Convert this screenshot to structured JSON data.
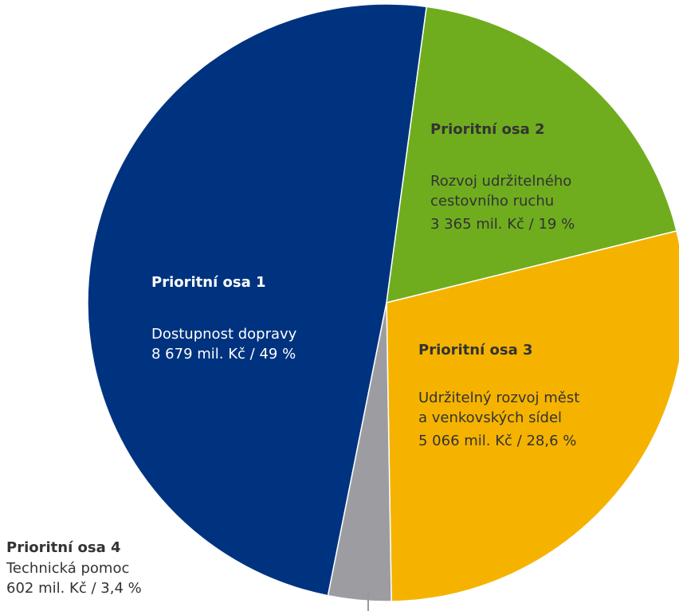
{
  "chart_data": {
    "type": "pie",
    "categories": [
      "Prioritní osa 1",
      "Prioritní osa 2",
      "Prioritní osa 3",
      "Prioritní osa 4"
    ],
    "descriptions": [
      [
        "Dostupnost dopravy"
      ],
      [
        "Rozvoj udržitelného",
        "cestovního ruchu"
      ],
      [
        "Udržitelný rozvoj měst",
        "a venkovských sídel"
      ],
      [
        "Technická pomoc"
      ]
    ],
    "values": [
      49,
      19,
      28.6,
      3.4
    ],
    "value_labels": [
      "8 679 mil. Kč / 49 %",
      "3 365 mil. Kč / 19 %",
      "5 066 mil. Kč / 28,6 %",
      "602 mil. Kč / 3,4 %"
    ],
    "colors": [
      "#00337f",
      "#6fad1f",
      "#f5b300",
      "#9c9ca1"
    ]
  }
}
